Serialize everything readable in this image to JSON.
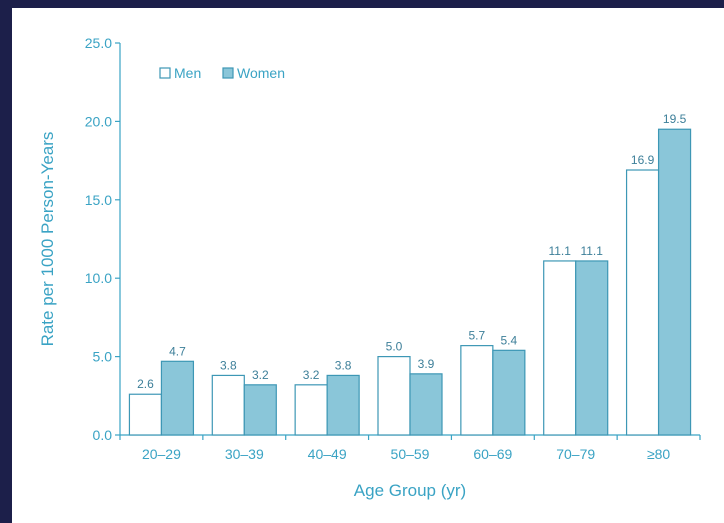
{
  "colors": {
    "accent": "#3aa3c4",
    "women_fill": "#8ac6d9",
    "men_fill": "#ffffff",
    "bar_stroke": "#3d97b5",
    "text": "#3aa3c4",
    "data_label": "#3d7f99"
  },
  "chart_data": {
    "type": "bar",
    "title": "",
    "xlabel": "Age Group (yr)",
    "ylabel": "Rate per 1000 Person-Years",
    "categories": [
      "20–29",
      "30–39",
      "40–49",
      "50–59",
      "60–69",
      "70–79",
      "≥80"
    ],
    "series": [
      {
        "name": "Men",
        "values": [
          2.6,
          3.8,
          3.2,
          5.0,
          5.7,
          11.1,
          16.9
        ],
        "labels": [
          "2.6",
          "3.8",
          "3.2",
          "5.0",
          "5.7",
          "11.1",
          "16.9"
        ]
      },
      {
        "name": "Women",
        "values": [
          4.7,
          3.2,
          3.8,
          3.9,
          5.4,
          11.1,
          19.5
        ],
        "labels": [
          "4.7",
          "3.2",
          "3.8",
          "3.9",
          "5.4",
          "11.1",
          "19.5"
        ]
      }
    ],
    "ylim": [
      0,
      25
    ],
    "yticks": [
      0,
      5,
      10,
      15,
      20,
      25
    ],
    "ytick_labels": [
      "0.0",
      "5.0",
      "10.0",
      "15.0",
      "20.0",
      "25.0"
    ],
    "grid": false,
    "legend_position": "top-left"
  }
}
